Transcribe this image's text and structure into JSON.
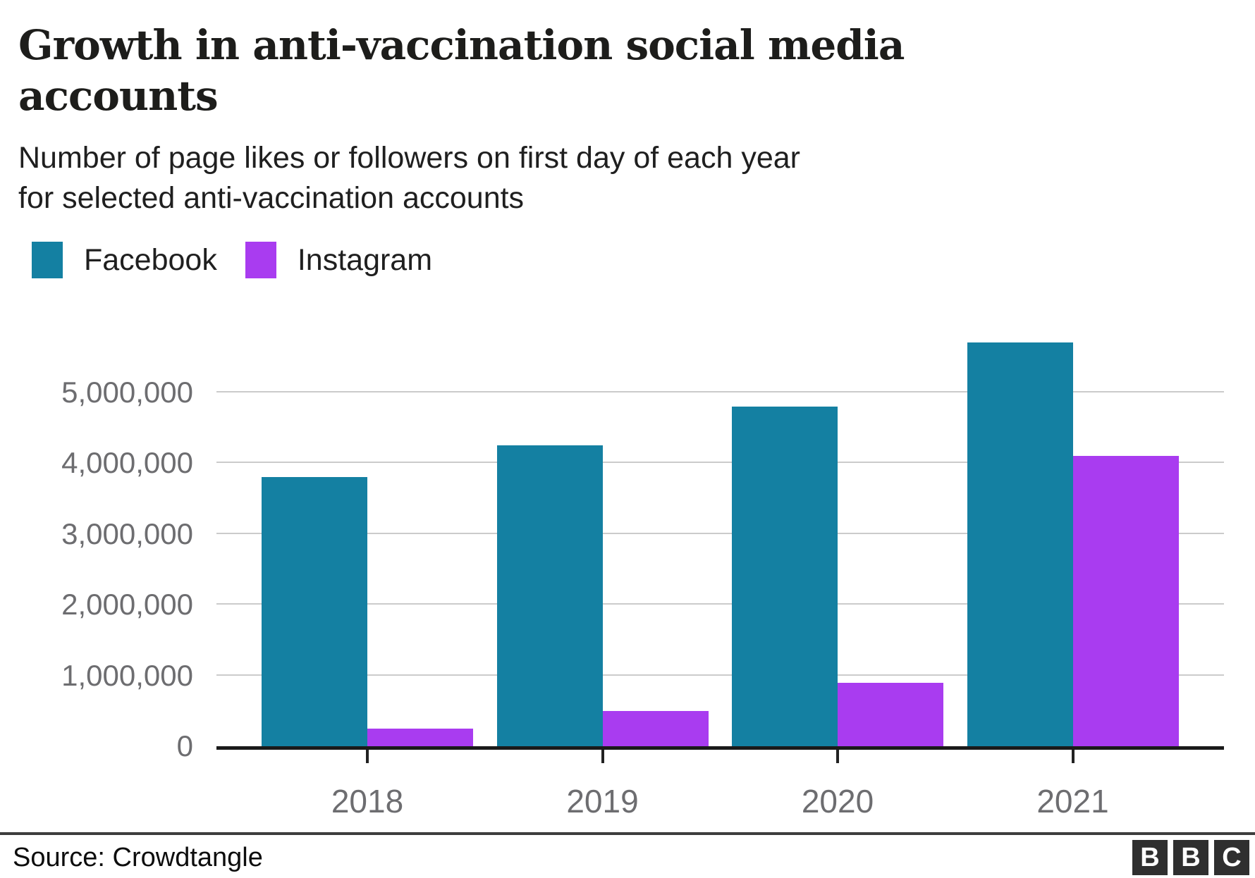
{
  "header": {
    "title_lines": [
      "Growth in anti-vaccination social media",
      "accounts"
    ],
    "subtitle_lines": [
      "Number of page likes or followers on first day of each year",
      "for selected anti-vaccination accounts"
    ]
  },
  "chart_data": {
    "type": "bar",
    "categories": [
      "2018",
      "2019",
      "2020",
      "2021"
    ],
    "series": [
      {
        "name": "Facebook",
        "color": "#1480A2",
        "values": [
          3800000,
          4250000,
          4800000,
          5700000
        ]
      },
      {
        "name": "Instagram",
        "color": "#A93CF0",
        "values": [
          250000,
          500000,
          900000,
          4100000
        ]
      }
    ],
    "title": "Growth in anti-vaccination social media accounts",
    "subtitle": "Number of page likes or followers on first day of each year for selected anti-vaccination accounts",
    "xlabel": "",
    "ylabel": "",
    "ylim": [
      0,
      6160000
    ],
    "grid": "horizontal",
    "legend_position": "top-left",
    "y_ticks": [
      {
        "value": 5000000,
        "label": "5,000,000"
      },
      {
        "value": 4000000,
        "label": "4,000,000"
      },
      {
        "value": 3000000,
        "label": "3,000,000"
      },
      {
        "value": 2000000,
        "label": "2,000,000"
      },
      {
        "value": 1000000,
        "label": "1,000,000"
      },
      {
        "value": 0,
        "label": "0"
      }
    ]
  },
  "footer": {
    "source": "Source: Crowdtangle",
    "logo_letters": [
      "B",
      "B",
      "C"
    ]
  },
  "colors": {
    "facebook": "#1480A2",
    "instagram": "#A93CF0",
    "axis_line": "#1a1a1a",
    "gridline": "#cbcbcb",
    "tick_text": "#6d6d70",
    "title_text": "#1d1d1b",
    "divider": "#3d3d3d",
    "logo_square": "#2f2f2f"
  }
}
